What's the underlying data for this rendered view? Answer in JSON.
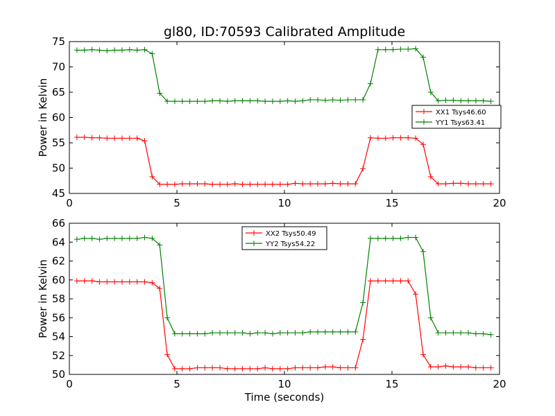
{
  "title": "gl80, ID:70593 Calibrated Amplitude",
  "chart_data": [
    {
      "type": "line",
      "title": "gl80, ID:70593 Calibrated Amplitude",
      "xlabel": "",
      "ylabel": "Power in Kelvin",
      "xlim": [
        0,
        20
      ],
      "ylim": [
        45,
        75
      ],
      "xticks": [
        0,
        5,
        10,
        15,
        20
      ],
      "yticks": [
        45,
        50,
        55,
        60,
        65,
        70,
        75
      ],
      "grid": false,
      "legend_position": "center-right",
      "x": [
        0.35,
        0.7,
        1.05,
        1.4,
        1.75,
        2.1,
        2.45,
        2.8,
        3.15,
        3.5,
        3.85,
        4.2,
        4.55,
        4.9,
        5.25,
        5.6,
        5.95,
        6.3,
        6.65,
        7.0,
        7.35,
        7.7,
        8.05,
        8.4,
        8.75,
        9.1,
        9.45,
        9.8,
        10.15,
        10.5,
        10.85,
        11.2,
        11.55,
        11.9,
        12.25,
        12.6,
        12.95,
        13.3,
        13.65,
        14.0,
        14.35,
        14.7,
        15.05,
        15.4,
        15.75,
        16.1,
        16.45,
        16.8,
        17.15,
        17.5,
        17.85,
        18.2,
        18.55,
        18.9,
        19.25,
        19.6
      ],
      "series": [
        {
          "name": "XX1 Tsys46.60",
          "color": "#ff0000",
          "values": [
            56.1,
            56.1,
            56.0,
            56.0,
            55.9,
            55.9,
            55.9,
            55.9,
            55.9,
            55.4,
            48.3,
            46.8,
            46.8,
            46.8,
            46.9,
            46.9,
            46.9,
            46.9,
            46.8,
            46.8,
            46.8,
            46.9,
            46.8,
            46.8,
            46.8,
            46.8,
            46.8,
            46.8,
            46.8,
            47.0,
            46.9,
            46.9,
            46.9,
            46.9,
            47.0,
            46.9,
            46.9,
            46.9,
            49.9,
            56.0,
            55.9,
            55.9,
            56.0,
            56.0,
            56.0,
            55.9,
            54.7,
            48.3,
            46.9,
            46.9,
            47.0,
            47.0,
            46.9,
            46.9,
            46.9,
            46.9
          ]
        },
        {
          "name": "YY1 Tsys63.41",
          "color": "#008000",
          "values": [
            73.3,
            73.3,
            73.4,
            73.3,
            73.2,
            73.3,
            73.3,
            73.4,
            73.3,
            73.4,
            72.6,
            64.8,
            63.2,
            63.2,
            63.2,
            63.2,
            63.2,
            63.2,
            63.3,
            63.3,
            63.2,
            63.3,
            63.3,
            63.3,
            63.3,
            63.2,
            63.2,
            63.2,
            63.3,
            63.2,
            63.3,
            63.5,
            63.5,
            63.4,
            63.5,
            63.4,
            63.5,
            63.5,
            63.5,
            66.7,
            73.4,
            73.4,
            73.4,
            73.5,
            73.5,
            73.6,
            71.9,
            65.0,
            63.3,
            63.4,
            63.4,
            63.3,
            63.3,
            63.3,
            63.3,
            63.2
          ]
        }
      ]
    },
    {
      "type": "line",
      "title": "",
      "xlabel": "Time (seconds)",
      "ylabel": "Power in Kelvin",
      "xlim": [
        0,
        20
      ],
      "ylim": [
        50,
        66
      ],
      "xticks": [
        0,
        5,
        10,
        15,
        20
      ],
      "yticks": [
        50,
        52,
        54,
        56,
        58,
        60,
        62,
        64,
        66
      ],
      "grid": false,
      "legend_position": "top-center",
      "x": [
        0.35,
        0.7,
        1.05,
        1.4,
        1.75,
        2.1,
        2.45,
        2.8,
        3.15,
        3.5,
        3.85,
        4.2,
        4.55,
        4.9,
        5.25,
        5.6,
        5.95,
        6.3,
        6.65,
        7.0,
        7.35,
        7.7,
        8.05,
        8.4,
        8.75,
        9.1,
        9.45,
        9.8,
        10.15,
        10.5,
        10.85,
        11.2,
        11.55,
        11.9,
        12.25,
        12.6,
        12.95,
        13.3,
        13.65,
        14.0,
        14.35,
        14.7,
        15.05,
        15.4,
        15.75,
        16.1,
        16.45,
        16.8,
        17.15,
        17.5,
        17.85,
        18.2,
        18.55,
        18.9,
        19.25,
        19.6
      ],
      "series": [
        {
          "name": "XX2 Tsys50.49",
          "color": "#ff0000",
          "values": [
            59.9,
            59.9,
            59.9,
            59.8,
            59.8,
            59.8,
            59.8,
            59.8,
            59.8,
            59.8,
            59.7,
            59.1,
            52.1,
            50.6,
            50.6,
            50.6,
            50.7,
            50.7,
            50.7,
            50.7,
            50.6,
            50.6,
            50.6,
            50.6,
            50.6,
            50.7,
            50.6,
            50.6,
            50.6,
            50.7,
            50.7,
            50.7,
            50.7,
            50.8,
            50.8,
            50.7,
            50.7,
            50.7,
            53.7,
            59.9,
            59.9,
            59.9,
            59.9,
            59.9,
            59.9,
            58.5,
            52.1,
            50.8,
            50.8,
            50.9,
            50.8,
            50.8,
            50.8,
            50.7,
            50.7,
            50.7
          ]
        },
        {
          "name": "YY2 Tsys54.22",
          "color": "#008000",
          "values": [
            64.3,
            64.4,
            64.4,
            64.3,
            64.4,
            64.4,
            64.4,
            64.4,
            64.4,
            64.5,
            64.4,
            63.7,
            56.0,
            54.3,
            54.3,
            54.3,
            54.3,
            54.3,
            54.4,
            54.4,
            54.4,
            54.4,
            54.4,
            54.3,
            54.4,
            54.4,
            54.3,
            54.4,
            54.4,
            54.4,
            54.4,
            54.5,
            54.5,
            54.5,
            54.5,
            54.5,
            54.5,
            54.5,
            57.6,
            64.4,
            64.4,
            64.4,
            64.4,
            64.4,
            64.5,
            64.5,
            63.0,
            56.0,
            54.4,
            54.4,
            54.4,
            54.4,
            54.4,
            54.3,
            54.3,
            54.2
          ]
        }
      ]
    }
  ]
}
